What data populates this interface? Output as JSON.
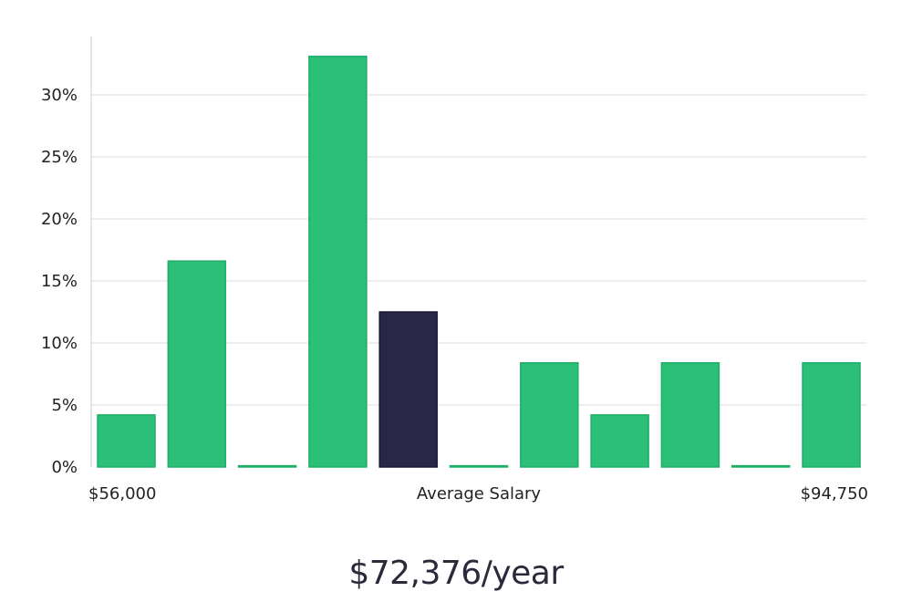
{
  "chart_data": {
    "type": "bar",
    "title": "",
    "xlabel": "Average Salary",
    "ylabel": "",
    "x_min_label": "$56,000",
    "x_max_label": "$94,750",
    "ylim": [
      0,
      34
    ],
    "yticks": [
      0,
      5,
      10,
      15,
      20,
      25,
      30
    ],
    "ytick_labels": [
      "0%",
      "5%",
      "10%",
      "15%",
      "20%",
      "25%",
      "30%"
    ],
    "values": [
      4.2,
      16.6,
      0.1,
      33.1,
      12.5,
      0.1,
      8.4,
      4.2,
      8.4,
      0.1,
      8.4
    ],
    "highlight_index": 4,
    "colors": {
      "bar": "#2bbf77",
      "bar_edge": "#1fae67",
      "highlight": "#2a2645",
      "highlight_edge": "#1a1736",
      "grid": "#dddddd",
      "axis": "#cccccc"
    },
    "grid": true
  },
  "summary": {
    "salary_text": "$72,376/year"
  }
}
